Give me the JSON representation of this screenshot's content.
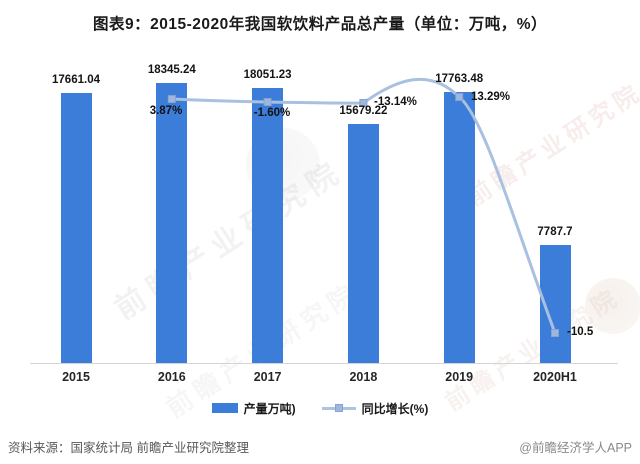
{
  "title": "图表9：2015-2020年我国软饮料产品总产量（单位：万吨，%）",
  "chart_data": {
    "type": "bar",
    "subtype": "bar-with-line-overlay",
    "title": "图表9：2015-2020年我国软饮料产品总产量（单位：万吨，%）",
    "categories": [
      "2015",
      "2016",
      "2017",
      "2018",
      "2019",
      "2020H1"
    ],
    "series": [
      {
        "name": "产量万吨)",
        "type": "bar",
        "values": [
          17661.04,
          18345.24,
          18051.23,
          15679.22,
          17763.48,
          7787.7
        ],
        "labels": [
          "17661.04",
          "18345.24",
          "18051.23",
          "15679.22",
          "17763.48",
          "7787.7"
        ]
      },
      {
        "name": "同比增长(%)",
        "type": "line",
        "values": [
          null,
          3.87,
          -1.6,
          -13.14,
          13.29,
          -10.5
        ],
        "labels": [
          null,
          "3.87%",
          "-1.60%",
          "-13.14%",
          "13.29%",
          "-10.5"
        ]
      }
    ],
    "ylabel": "万吨",
    "y2label": "%",
    "ylim": [
      0,
      18345.24
    ],
    "grid": false,
    "legend_position": "bottom"
  },
  "legend": {
    "bar_label": "产量万吨)",
    "line_label": "同比增长(%)"
  },
  "footer": {
    "source": "资料来源：国家统计局 前瞻产业研究院整理",
    "credit": "@前瞻经济学人APP"
  },
  "watermark": {
    "text": "前瞻产业研究院"
  },
  "colors": {
    "bar": "#3b7dd8",
    "line": "#a9c0de",
    "marker_fill": "#9fb7dd",
    "marker_edge": "#87a3cf",
    "axis": "#d4d4d4",
    "label": "#141414"
  },
  "icons": {
    "bar_swatch": "bar-legend-swatch",
    "line_swatch": "line-legend-swatch"
  }
}
